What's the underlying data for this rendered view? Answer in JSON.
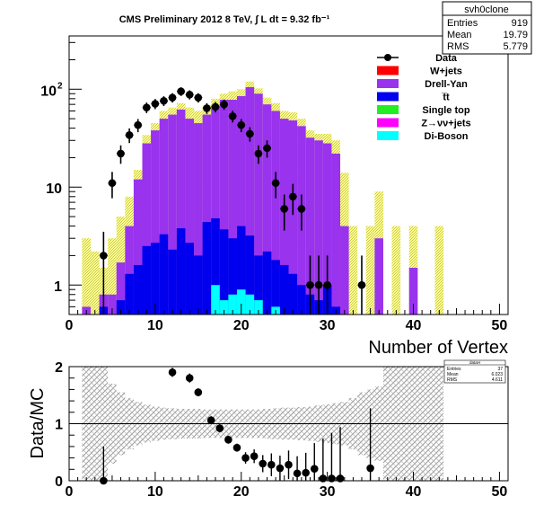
{
  "chart_data": [
    {
      "type": "bar",
      "title": "CMS Preliminary 2012 8 TeV, ∫ L dt = 9.32 fb⁻¹",
      "xlabel": "Number of Vertex",
      "ylabel": "",
      "xlim": [
        0,
        51
      ],
      "ylim": [
        0.5,
        350
      ],
      "log_y": true,
      "y_ticks": [
        "1",
        "10",
        "10²"
      ],
      "x_ticks": [
        "0",
        "10",
        "20",
        "30",
        "40",
        "50"
      ],
      "stats_box": {
        "title": "svh0clone",
        "rows": [
          {
            "label": "Entries",
            "value": "919"
          },
          {
            "label": "Mean",
            "value": "19.79"
          },
          {
            "label": "RMS",
            "value": "5.779"
          }
        ]
      },
      "legend": [
        {
          "name": "Data",
          "style": "marker",
          "color": "#000000"
        },
        {
          "name": "W+jets",
          "style": "fill",
          "color": "#ff0000"
        },
        {
          "name": "Drell-Yan",
          "style": "fill",
          "color": "#9933ee"
        },
        {
          "name": "t̅t",
          "style": "fill",
          "color": "#0000ee"
        },
        {
          "name": "Single top",
          "style": "fill",
          "color": "#22ee22"
        },
        {
          "name": "Z→νν+jets",
          "style": "fill",
          "color": "#ff00ff"
        },
        {
          "name": "Di-Boson",
          "style": "fill",
          "color": "#00ffff"
        }
      ],
      "bins": [
        2,
        3,
        4,
        5,
        6,
        7,
        8,
        9,
        10,
        11,
        12,
        13,
        14,
        15,
        16,
        17,
        18,
        19,
        20,
        21,
        22,
        23,
        24,
        25,
        26,
        27,
        28,
        29,
        30,
        31,
        32,
        33,
        34,
        35,
        36,
        37,
        38,
        39,
        40,
        41,
        42,
        43,
        44,
        45,
        46,
        47,
        48,
        49,
        50
      ],
      "series": [
        {
          "name": "Drell-Yan",
          "color": "#9933ee",
          "values": [
            0.6,
            0.5,
            0.8,
            0.8,
            1.7,
            4,
            12,
            28,
            38,
            50,
            55,
            62,
            50,
            45,
            55,
            68,
            78,
            78,
            85,
            105,
            90,
            70,
            60,
            50,
            48,
            42,
            32,
            30,
            28,
            22,
            4,
            0,
            0,
            0,
            3,
            0,
            0,
            0,
            1.5,
            0,
            0,
            0,
            0,
            0,
            0,
            0,
            0,
            0,
            0
          ]
        },
        {
          "name": "t̅t",
          "color": "#0000ee",
          "values": [
            0,
            0,
            0.6,
            0.5,
            0.7,
            1.3,
            1.6,
            2.5,
            2.7,
            3.3,
            2.3,
            3.8,
            2.7,
            2.0,
            4.4,
            4.8,
            3.7,
            3.0,
            4.0,
            3.2,
            2.0,
            2.2,
            1.8,
            1.6,
            1.3,
            1.0,
            0.8,
            0.7,
            1.0,
            0.6,
            0,
            0,
            0,
            0,
            0,
            0,
            0,
            0,
            0,
            0,
            0,
            0,
            0,
            0,
            0,
            0,
            0,
            0,
            0
          ]
        },
        {
          "name": "Di-Boson",
          "color": "#00ffff",
          "values": [
            0,
            0,
            0,
            0,
            0,
            0,
            0,
            0,
            0,
            0,
            0,
            0.5,
            0,
            0,
            0,
            1.0,
            0.7,
            0.8,
            0.9,
            0.8,
            0.7,
            0,
            0.6,
            0,
            0,
            0,
            0,
            0,
            0,
            0,
            0,
            0,
            0,
            0,
            0,
            0,
            0,
            0,
            0,
            0,
            0,
            0,
            0,
            0,
            0,
            0,
            0,
            0,
            0
          ]
        },
        {
          "name": "W+jets",
          "color": "#ff0000",
          "values": [
            0,
            0,
            0,
            0,
            0,
            0,
            0,
            0,
            0,
            0,
            0,
            0,
            0,
            0,
            0,
            0,
            0,
            0,
            0,
            0,
            0,
            0,
            0,
            0,
            0,
            0,
            0,
            0,
            0,
            0,
            0,
            0,
            0,
            0,
            0,
            0,
            0,
            0,
            0,
            0,
            0,
            0,
            0,
            0,
            0,
            0,
            0,
            0,
            0
          ]
        },
        {
          "name": "Single top",
          "color": "#22ee22",
          "values": [
            0,
            0,
            0,
            0,
            0,
            0,
            0,
            0,
            0,
            0,
            0,
            0,
            0,
            0,
            0,
            0,
            0,
            0,
            0,
            0,
            0,
            0,
            0,
            0,
            0,
            0,
            0,
            0,
            0,
            0,
            0,
            0,
            0,
            0,
            0,
            0,
            0,
            0,
            0,
            0,
            0,
            0,
            0,
            0,
            0,
            0,
            0,
            0,
            0
          ]
        },
        {
          "name": "Z→νν+jets",
          "color": "#ff00ff",
          "values": [
            0,
            0,
            0,
            0,
            0,
            0,
            0,
            0,
            0,
            0,
            0,
            0,
            0,
            0,
            0,
            0,
            0,
            0,
            0,
            0,
            0,
            0,
            0,
            0,
            0,
            0,
            0,
            0,
            0,
            0,
            0,
            0,
            0,
            0,
            0,
            0,
            0,
            0,
            0,
            0,
            0,
            0,
            0,
            0,
            0,
            0,
            0,
            0,
            0
          ]
        }
      ],
      "mc_total": [
        3,
        2.2,
        1.5,
        3,
        5,
        8,
        15,
        34,
        45,
        60,
        65,
        72,
        65,
        60,
        68,
        80,
        90,
        95,
        100,
        120,
        102,
        82,
        72,
        60,
        58,
        50,
        38,
        35,
        35,
        30,
        14,
        4,
        0,
        4,
        9,
        0,
        4,
        0,
        4,
        0,
        0,
        4,
        0,
        0,
        0,
        0,
        0,
        0,
        0
      ],
      "data": {
        "name": "Data",
        "points": [
          {
            "x": 4,
            "y": 2,
            "err": 1.5
          },
          {
            "x": 5,
            "y": 11,
            "err": 3.3
          },
          {
            "x": 6,
            "y": 22,
            "err": 4.7
          },
          {
            "x": 7,
            "y": 34,
            "err": 5.8
          },
          {
            "x": 8,
            "y": 43,
            "err": 6.6
          },
          {
            "x": 9,
            "y": 65,
            "err": 8
          },
          {
            "x": 10,
            "y": 71,
            "err": 8.4
          },
          {
            "x": 11,
            "y": 76,
            "err": 8.7
          },
          {
            "x": 12,
            "y": 82,
            "err": 9
          },
          {
            "x": 13,
            "y": 95,
            "err": 9.7
          },
          {
            "x": 14,
            "y": 88,
            "err": 9.4
          },
          {
            "x": 15,
            "y": 82,
            "err": 9
          },
          {
            "x": 16,
            "y": 64,
            "err": 8
          },
          {
            "x": 17,
            "y": 66,
            "err": 8.1
          },
          {
            "x": 18,
            "y": 70,
            "err": 8.4
          },
          {
            "x": 19,
            "y": 53,
            "err": 7.3
          },
          {
            "x": 20,
            "y": 43,
            "err": 6.6
          },
          {
            "x": 21,
            "y": 35,
            "err": 5.9
          },
          {
            "x": 22,
            "y": 22,
            "err": 4.7
          },
          {
            "x": 23,
            "y": 25,
            "err": 5
          },
          {
            "x": 24,
            "y": 11,
            "err": 3.3
          },
          {
            "x": 25,
            "y": 6,
            "err": 2.4
          },
          {
            "x": 26,
            "y": 8,
            "err": 2.8
          },
          {
            "x": 27,
            "y": 6,
            "err": 2.4
          },
          {
            "x": 28,
            "y": 1,
            "err": 1
          },
          {
            "x": 29,
            "y": 1,
            "err": 1
          },
          {
            "x": 30,
            "y": 1,
            "err": 1
          },
          {
            "x": 34,
            "y": 1,
            "err": 1
          }
        ]
      }
    },
    {
      "type": "scatter",
      "title": "",
      "xlabel": "",
      "ylabel": "Data/MC",
      "xlim": [
        0,
        51
      ],
      "ylim": [
        0,
        2
      ],
      "x_ticks": [
        "0",
        "10",
        "20",
        "30",
        "40",
        "50"
      ],
      "y_ticks": [
        "0",
        "1",
        "2"
      ],
      "reference_line": 1,
      "stats_box": {
        "title": "dataH",
        "rows": [
          {
            "label": "Entries",
            "value": "37"
          },
          {
            "label": "Mean",
            "value": "6.023"
          },
          {
            "label": "RMS",
            "value": "4.611"
          }
        ]
      },
      "band_halfwidth": [
        1.0,
        1.0,
        1.0,
        0.7,
        0.55,
        0.45,
        0.38,
        0.33,
        0.3,
        0.28,
        0.27,
        0.26,
        0.26,
        0.26,
        0.25,
        0.25,
        0.25,
        0.25,
        0.25,
        0.25,
        0.25,
        0.26,
        0.27,
        0.28,
        0.28,
        0.29,
        0.3,
        0.32,
        0.34,
        0.36,
        0.38,
        0.45,
        0.55,
        0.6,
        0.65,
        1.0,
        1.0,
        1.0,
        1.0,
        1.0,
        1.0,
        1.0,
        0,
        0,
        0,
        0,
        0,
        0,
        0
      ],
      "points": [
        {
          "x": 4,
          "y": 0.0,
          "err": 0.6
        },
        {
          "x": 12,
          "y": 1.9,
          "err": 0.08
        },
        {
          "x": 14,
          "y": 1.8,
          "err": 0.08
        },
        {
          "x": 15,
          "y": 1.55,
          "err": 0.07
        },
        {
          "x": 16.5,
          "y": 1.06,
          "err": 0.07
        },
        {
          "x": 17.5,
          "y": 0.92,
          "err": 0.07
        },
        {
          "x": 18.5,
          "y": 0.72,
          "err": 0.07
        },
        {
          "x": 19.5,
          "y": 0.58,
          "err": 0.07
        },
        {
          "x": 20.5,
          "y": 0.4,
          "err": 0.1
        },
        {
          "x": 21.5,
          "y": 0.43,
          "err": 0.12
        },
        {
          "x": 22.5,
          "y": 0.3,
          "err": 0.15
        },
        {
          "x": 23.5,
          "y": 0.28,
          "err": 0.2
        },
        {
          "x": 24.5,
          "y": 0.22,
          "err": 0.22
        },
        {
          "x": 25.5,
          "y": 0.28,
          "err": 0.25
        },
        {
          "x": 26.5,
          "y": 0.13,
          "err": 0.3
        },
        {
          "x": 27.5,
          "y": 0.14,
          "err": 0.35
        },
        {
          "x": 28.5,
          "y": 0.21,
          "err": 0.45
        },
        {
          "x": 29.5,
          "y": 0.04,
          "err": 0.7
        },
        {
          "x": 30.5,
          "y": 0.04,
          "err": 0.8
        },
        {
          "x": 31.5,
          "y": 0.04,
          "err": 0.9
        },
        {
          "x": 35,
          "y": 0.22,
          "err": 1.05
        }
      ]
    }
  ]
}
